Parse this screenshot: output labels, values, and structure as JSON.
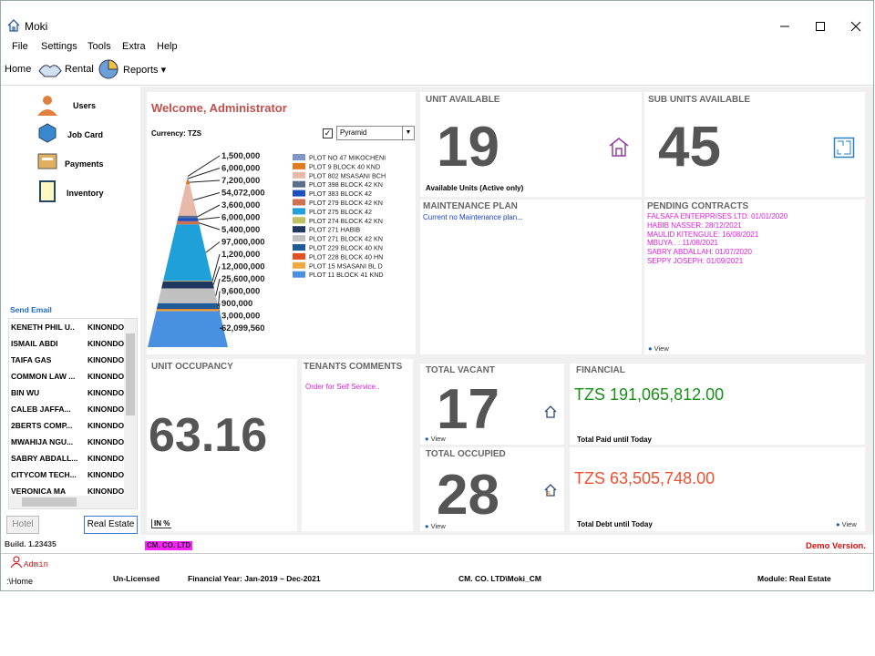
{
  "window": {
    "title": "Moki"
  },
  "menu": [
    "File",
    "Settings",
    "Tools",
    "Extra",
    "Help"
  ],
  "toolbar": {
    "home": "Home",
    "rental": "Rental",
    "reports": "Reports"
  },
  "sidebar": {
    "nav": [
      "Users",
      "Job Card",
      "Payments",
      "Inventory"
    ],
    "send_email": "Send Email",
    "tenants": [
      [
        "KENETH PHIL U..",
        "KINONDO"
      ],
      [
        "ISMAIL ABDI",
        "KINONDO"
      ],
      [
        "TAIFA GAS",
        "KINONDO"
      ],
      [
        "COMMON LAW ...",
        "KINONDO"
      ],
      [
        "BIN WU",
        "KINONDO"
      ],
      [
        "CALEB JAFFA...",
        "KINONDO"
      ],
      [
        "2BERTS COMP...",
        "KINONDO"
      ],
      [
        "MWAHIJA NGU...",
        "KINONDO"
      ],
      [
        "SABRY ABDALL...",
        "KINONDO"
      ],
      [
        "CITYCOM TECH...",
        "KINONDO"
      ],
      [
        "VERONICA MA",
        "KINONDO"
      ]
    ],
    "tabs": [
      "Hotel",
      "Real Estate"
    ],
    "build": "Build. 1.23435"
  },
  "welcome": "Welcome, Administrator",
  "currency": "Currency: TZS",
  "chart_type": "Pyramid",
  "chart_data": {
    "type": "pyramid",
    "categories": [
      null,
      "PLOT NO 47 MIKOCHENI",
      "PLOT 9 BLOCK 40 KND",
      "PLOT 802 MSASANI BCH",
      "PLOT 398 BLOCK 42 KN",
      "PLOT 383 BLOCK 42",
      "PLOT 279 BLOCK 42 KN",
      "PLOT 275 BLOCK 42",
      "PLOT 274 BLOCK 42 KN",
      "PLOT 271 HABIB",
      "PLOT 271 BLOCK 42 KN",
      "PLOT 229 BLOCK 40 KN",
      "PLOT 228 BLOCK 40 HN",
      "PLOT 15 MSASANI BL D",
      "PLOT 11 BLOCK 41 KND"
    ],
    "values": [
      1500000,
      6000000,
      7200000,
      54072000,
      3600000,
      6000000,
      5400000,
      97000000,
      1200000,
      12000000,
      25600000,
      9600000,
      900000,
      3000000,
      62099560
    ],
    "value_labels": [
      "1,500,000",
      "6,000,000",
      "7,200,000",
      "54,072,000",
      "3,600,000",
      "6,000,000",
      "5,400,000",
      "97,000,000",
      "1,200,000",
      "12,000,000",
      "25,600,000",
      "9,600,000",
      "900,000",
      "3,000,000",
      "62,099,560"
    ],
    "colors": [
      "#f0a040",
      "#8096c8",
      "#e07b20",
      "#e8b8a8",
      "#5a6e8c",
      "#2050c0",
      "#d07050",
      "#20a0d8",
      "#c0c060",
      "#203860",
      "#c0c0c0",
      "#1e5a98",
      "#e05020",
      "#f0a840",
      "#4a90e0"
    ]
  },
  "unit_available": {
    "title": "UNIT AVAILABLE",
    "value": 19,
    "caption": "Available Units (Active only)"
  },
  "sub_units": {
    "title": "SUB UNITS AVAILABLE",
    "value": 45
  },
  "maintenance": {
    "title": "MAINTENANCE PLAN",
    "text": "Current no Maintenance plan..."
  },
  "pending": {
    "title": "PENDING CONTRACTS",
    "items": [
      "FALSAFA ENTERPRISES LTD: 01/01/2020",
      "HABIB NASSER: 28/12/2021",
      "MAULID KITENGULE: 16/08/2021",
      "MBUYA . : 11/08/2021",
      "SABRY ABDALLAH: 01/07/2020",
      "SEPPY JOSEPH: 01/09/2021"
    ],
    "view": "View"
  },
  "occupancy": {
    "title": "UNIT OCCUPANCY",
    "value": 63.16,
    "unit": "IN %"
  },
  "comments": {
    "title": "TENANTS COMMENTS",
    "text": "Order for Self Service.."
  },
  "vacant": {
    "title": "TOTAL VACANT",
    "value": 17,
    "view": "View"
  },
  "occupied": {
    "title": "TOTAL OCCUPIED",
    "value": 28,
    "view": "View"
  },
  "financial": {
    "title": "FINANCIAL",
    "paid": "TZS 191,065,812.00",
    "paid_caption": "Total Paid until Today",
    "debt": "TZS 63,505,748.00",
    "debt_caption": "Total Debt until Today",
    "view": "View"
  },
  "company": "CM. CO. LTD",
  "demo": "Demo Version.",
  "status": {
    "user": "Admin",
    "path": ":\\Home",
    "license": "Un-Licensed",
    "year": "Financial Year: Jan-2019 ~ Dec-2021",
    "db": "CM. CO. LTD\\Moki_CM",
    "module": "Module: Real Estate"
  }
}
